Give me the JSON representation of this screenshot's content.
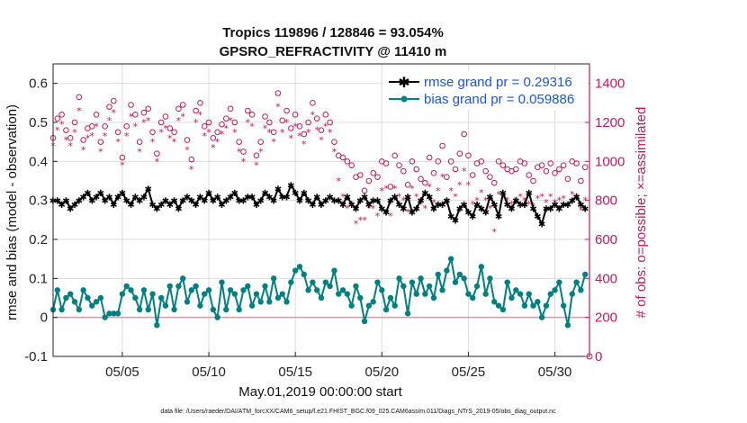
{
  "chart_data": {
    "type": "line",
    "title_line1": "Tropics 119896 / 128846 = 93.054%",
    "title_line2": "GPSRO_REFRACTIVITY @ 11410 m",
    "xlabel": "May.01,2019 00:00:00 start",
    "ylabel_left": "rmse and bias (model - observation)",
    "ylabel_right": "# of obs: o=possible; ×=assimilated",
    "footnote": "data file: /Users/raeder/DAI/ATM_forcXX/CAM6_setup/f.e21.FHIST_BGC.f09_025.CAM6assim.011/Diags_NTrS_2019-05/obs_diag_output.nc",
    "x_tick_labels": [
      "05/05",
      "05/10",
      "05/15",
      "05/20",
      "05/25",
      "05/30"
    ],
    "x_tick_days": [
      5,
      10,
      15,
      20,
      25,
      30
    ],
    "x_range_days": [
      1.0,
      32.0
    ],
    "y_left_range": [
      -0.1,
      0.65
    ],
    "y_left_ticks": [
      "-0.1",
      "0",
      "0.1",
      "0.2",
      "0.3",
      "0.4",
      "0.5",
      "0.6"
    ],
    "y_left_tick_values": [
      -0.1,
      0,
      0.1,
      0.2,
      0.3,
      0.4,
      0.5,
      0.6
    ],
    "y_right_range": [
      0,
      1500
    ],
    "y_right_ticks": [
      "0",
      "200",
      "400",
      "600",
      "800",
      "1000",
      "1200",
      "1400"
    ],
    "y_right_tick_values": [
      0,
      200,
      400,
      600,
      800,
      1000,
      1200,
      1400
    ],
    "legend": [
      {
        "label": "rmse grand pr = 0.29316",
        "color": "#000000",
        "marker": "star"
      },
      {
        "label": "bias grand pr = 0.059886",
        "color": "#008080",
        "marker": "circle"
      }
    ],
    "legend_position": "top-right",
    "colors": {
      "rmse": "#000000",
      "bias": "#008080",
      "obs": "#c2185b",
      "grid": "#dcdcdc",
      "zero_line": "#c8a0a8"
    },
    "series_note": "124 analysis times, 6-hourly from May 1 to May 31 18Z; values estimated from the figure",
    "rmse": [
      0.3,
      0.3,
      0.29,
      0.3,
      0.28,
      0.29,
      0.3,
      0.31,
      0.32,
      0.3,
      0.31,
      0.32,
      0.3,
      0.31,
      0.29,
      0.31,
      0.32,
      0.3,
      0.29,
      0.31,
      0.3,
      0.31,
      0.33,
      0.29,
      0.28,
      0.29,
      0.3,
      0.29,
      0.3,
      0.28,
      0.3,
      0.31,
      0.3,
      0.29,
      0.31,
      0.3,
      0.32,
      0.3,
      0.31,
      0.29,
      0.3,
      0.31,
      0.32,
      0.3,
      0.3,
      0.31,
      0.31,
      0.29,
      0.3,
      0.32,
      0.31,
      0.3,
      0.33,
      0.31,
      0.31,
      0.34,
      0.32,
      0.3,
      0.32,
      0.3,
      0.29,
      0.31,
      0.29,
      0.3,
      0.31,
      0.3,
      0.3,
      0.29,
      0.31,
      0.29,
      0.28,
      0.3,
      0.31,
      0.29,
      0.3,
      0.3,
      0.28,
      0.27,
      0.3,
      0.31,
      0.29,
      0.28,
      0.31,
      0.27,
      0.28,
      0.3,
      0.32,
      0.31,
      0.28,
      0.29,
      0.29,
      0.3,
      0.26,
      0.25,
      0.28,
      0.29,
      0.27,
      0.26,
      0.29,
      0.28,
      0.27,
      0.31,
      0.29,
      0.26,
      0.32,
      0.29,
      0.28,
      0.3,
      0.29,
      0.29,
      0.32,
      0.28,
      0.26,
      0.24,
      0.28,
      0.28,
      0.29,
      0.28,
      0.29,
      0.29,
      0.3,
      0.31,
      0.29,
      0.28
    ],
    "bias": [
      0.02,
      0.07,
      0.02,
      0.05,
      0.06,
      0.04,
      0.02,
      0.07,
      0.05,
      0.03,
      0.04,
      0.05,
      0.0,
      0.01,
      0.01,
      0.01,
      0.06,
      0.08,
      0.07,
      0.05,
      0.02,
      0.07,
      0.02,
      0.06,
      -0.02,
      0.05,
      0.03,
      0.08,
      0.02,
      0.08,
      0.1,
      0.04,
      0.07,
      0.08,
      0.03,
      0.06,
      0.07,
      0.02,
      0.0,
      0.09,
      0.02,
      0.07,
      0.06,
      0.02,
      0.07,
      0.08,
      0.03,
      0.06,
      0.04,
      0.08,
      0.04,
      0.1,
      0.05,
      0.06,
      0.04,
      0.09,
      0.12,
      0.13,
      0.11,
      0.07,
      0.09,
      0.07,
      0.05,
      0.09,
      0.08,
      0.12,
      0.06,
      0.07,
      0.06,
      0.03,
      0.08,
      0.05,
      -0.01,
      0.03,
      0.04,
      0.09,
      0.07,
      0.02,
      0.05,
      0.03,
      0.1,
      0.08,
      0.01,
      0.09,
      0.06,
      0.1,
      0.06,
      0.08,
      0.05,
      0.11,
      0.07,
      0.12,
      0.15,
      0.09,
      0.11,
      0.1,
      0.06,
      0.05,
      0.08,
      0.13,
      0.06,
      0.1,
      0.04,
      0.03,
      0.02,
      0.09,
      0.05,
      0.07,
      0.06,
      0.03,
      0.06,
      0.03,
      0.04,
      0.0,
      0.03,
      0.06,
      0.07,
      0.09,
      0.03,
      -0.02,
      0.06,
      0.09,
      0.07,
      0.11
    ],
    "obs_possible": [
      1120,
      1220,
      1240,
      1160,
      1120,
      1200,
      1330,
      1110,
      1170,
      1180,
      1240,
      1100,
      1180,
      1280,
      1310,
      1150,
      1020,
      1180,
      1290,
      1240,
      1100,
      1250,
      1270,
      1150,
      1040,
      1200,
      1230,
      1170,
      1150,
      1270,
      1290,
      1110,
      1010,
      1260,
      1300,
      1180,
      1200,
      1120,
      1150,
      1190,
      1220,
      1270,
      1200,
      1100,
      1050,
      1260,
      1240,
      1030,
      1100,
      1230,
      1200,
      1150,
      1350,
      1210,
      1260,
      1170,
      1240,
      1180,
      1140,
      1200,
      1300,
      1220,
      1160,
      1240,
      1200,
      1100,
      1030,
      1020,
      1000,
      980,
      920,
      930,
      850,
      900,
      940,
      920,
      1000,
      990,
      870,
      1030,
      980,
      950,
      880,
      1000,
      960,
      910,
      890,
      1020,
      940,
      1000,
      1080,
      920,
      1000,
      960,
      1040,
      1140,
      1030,
      930,
      990,
      1000,
      950,
      920,
      890,
      1000,
      980,
      960,
      950,
      960,
      1000,
      990,
      930,
      900,
      970,
      980,
      950,
      990,
      940,
      960,
      980,
      910,
      1000,
      990,
      900,
      970
    ],
    "obs_assimilated": [
      1080,
      1160,
      1190,
      1110,
      1080,
      1150,
      1260,
      1060,
      1120,
      1130,
      1180,
      1050,
      1130,
      1210,
      1250,
      1100,
      980,
      1130,
      1230,
      1180,
      1050,
      1200,
      1210,
      1100,
      1000,
      1150,
      1170,
      1120,
      1100,
      1210,
      1230,
      1060,
      960,
      1200,
      1240,
      1130,
      1150,
      1070,
      1100,
      1140,
      1170,
      1210,
      1150,
      1050,
      1000,
      1200,
      1180,
      980,
      1050,
      1170,
      1150,
      1100,
      1280,
      1150,
      1200,
      1120,
      1180,
      1130,
      1090,
      1150,
      1240,
      1160,
      1110,
      1180,
      1150,
      1050,
      900,
      820,
      760,
      780,
      680,
      700,
      700,
      760,
      760,
      720,
      850,
      860,
      720,
      860,
      820,
      800,
      740,
      860,
      820,
      780,
      760,
      870,
      790,
      850,
      920,
      780,
      850,
      820,
      880,
      950,
      880,
      780,
      800,
      840,
      800,
      760,
      640,
      830,
      810,
      800,
      780,
      800,
      820,
      800,
      780,
      770,
      810,
      820,
      790,
      820,
      790,
      800,
      810,
      770,
      830,
      820,
      750,
      800
    ]
  }
}
